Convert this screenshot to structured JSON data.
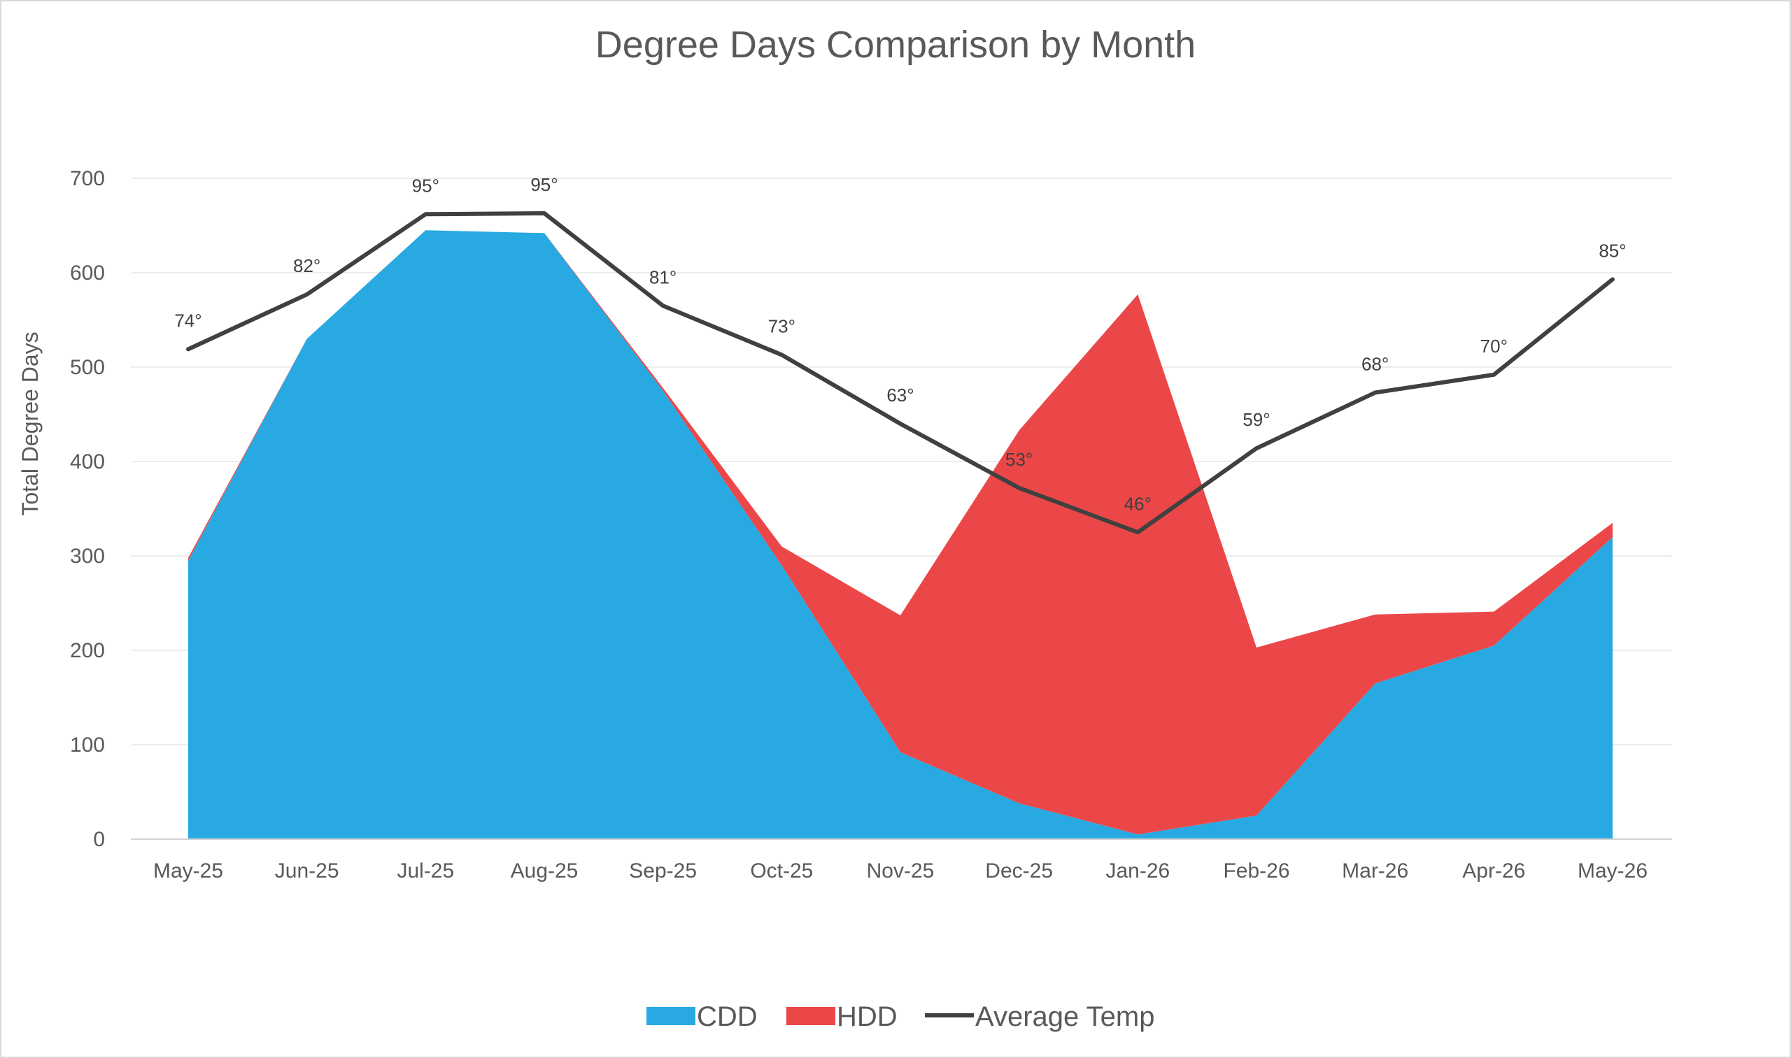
{
  "chart_data": {
    "type": "area",
    "title": "Degree Days Comparison by Month",
    "ylabel": "Total Degree Days",
    "xlabel": "",
    "ylim": [
      0,
      700
    ],
    "yticks": [
      0,
      100,
      200,
      300,
      400,
      500,
      600,
      700
    ],
    "grid": true,
    "legend_position": "bottom",
    "categories": [
      "May-25",
      "Jun-25",
      "Jul-25",
      "Aug-25",
      "Sep-25",
      "Oct-25",
      "Nov-25",
      "Dec-25",
      "Jan-26",
      "Feb-26",
      "Mar-26",
      "Apr-26",
      "May-26"
    ],
    "series": [
      {
        "name": "CDD",
        "kind": "stacked-area",
        "color": "#29a9e1",
        "values": [
          295,
          530,
          645,
          642,
          475,
          290,
          92,
          38,
          5,
          25,
          165,
          205,
          320
        ]
      },
      {
        "name": "HDD",
        "kind": "stacked-area",
        "color": "#eb4748",
        "values": [
          3,
          0,
          0,
          0,
          3,
          20,
          145,
          395,
          572,
          178,
          73,
          36,
          15
        ]
      },
      {
        "name": "Average Temp",
        "kind": "line",
        "color": "#404040",
        "values": [
          519,
          577,
          662,
          663,
          565,
          513,
          440,
          372,
          325,
          414,
          473,
          492,
          593
        ],
        "labels": [
          "74°",
          "82°",
          "95°",
          "95°",
          "81°",
          "73°",
          "63°",
          "53°",
          "46°",
          "59°",
          "68°",
          "70°",
          "85°"
        ]
      }
    ]
  }
}
